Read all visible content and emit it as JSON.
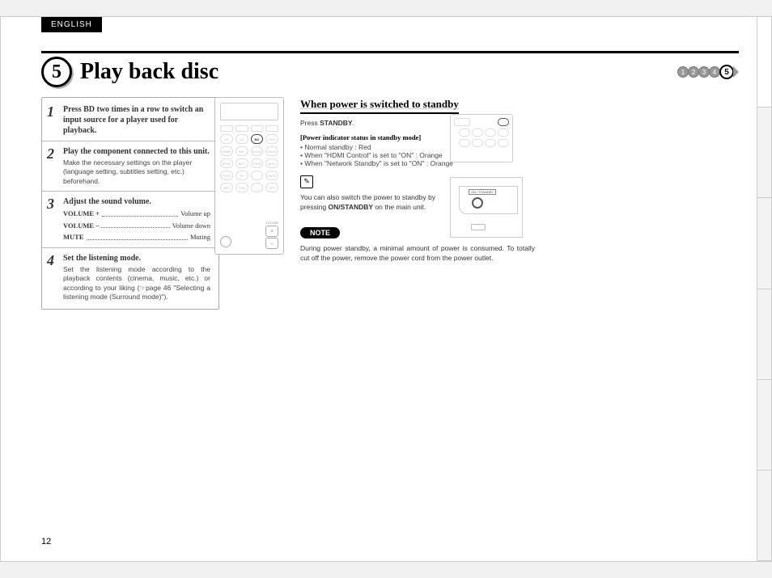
{
  "lang_tab": "ENGLISH",
  "step_number": "5",
  "main_title": "Play back disc",
  "progress": [
    "1",
    "2",
    "3",
    "4",
    "5"
  ],
  "progress_active": 5,
  "steps": [
    {
      "num": "1",
      "heading_pre": "Press ",
      "heading_bold": "BD",
      "heading_post": " two times in a row to switch an input source for a player used for playback."
    },
    {
      "num": "2",
      "heading": "Play the component connected to this unit.",
      "desc": "Make the necessary settings on the player (language setting, subtitles setting, etc.) beforehand."
    },
    {
      "num": "3",
      "heading": "Adjust the sound volume.",
      "rows": [
        {
          "label": "VOLUME +",
          "value": "Volume up"
        },
        {
          "label": "VOLUME –",
          "value": "Volume down"
        },
        {
          "label": "MUTE",
          "value": "Muting"
        }
      ]
    },
    {
      "num": "4",
      "heading": "Set the listening mode.",
      "desc": "Set the listening mode according to the playback contents (cinema, music, etc.) or according to your liking (☞page 46 \"Selecting a listening mode (Surround mode)\")."
    }
  ],
  "remote_buttons_r1": [
    "",
    "",
    "",
    ""
  ],
  "remote_buttons_r2": [
    "CD",
    "DJ",
    "BD",
    "DVD"
  ],
  "remote_buttons_r3": [
    "GAME",
    "SAT",
    "DOCK",
    "V.AUX"
  ],
  "remote_buttons_r4": [
    "iPOD",
    "BUT",
    "FAVB",
    "AUXI"
  ],
  "remote_buttons_r5": [
    "PORT",
    "TV",
    "",
    "INFO"
  ],
  "remote_buttons_r6": [
    "NET",
    "TUN",
    "",
    "OPT"
  ],
  "standby": {
    "title": "When power is switched to standby",
    "press_pre": "Press ",
    "press_bold": "STANDBY",
    "press_post": ".",
    "indicator_title": "[Power indicator status in standby mode]",
    "bullets": [
      "Normal standby : Red",
      "When \"HDMI Control\" is set to \"ON\" : Orange",
      "When \"Network Standby\" is set to \"ON\" : Orange"
    ],
    "switch_pre": "You can also switch the power to standby by pressing ",
    "switch_bold": "ON/STANDBY",
    "switch_post": " on the main unit.",
    "unit_label": "ON / STANDBY"
  },
  "note": {
    "badge": "NOTE",
    "text": "During power standby, a minimal amount of power is consumed. To totally cut off the power, remove the power cord from the power outlet."
  },
  "pen_glyph": "✎",
  "page_number": "12",
  "colors": {
    "page_bg": "#ffffff",
    "text": "#333333",
    "black": "#000000",
    "border_light": "#cccccc"
  }
}
